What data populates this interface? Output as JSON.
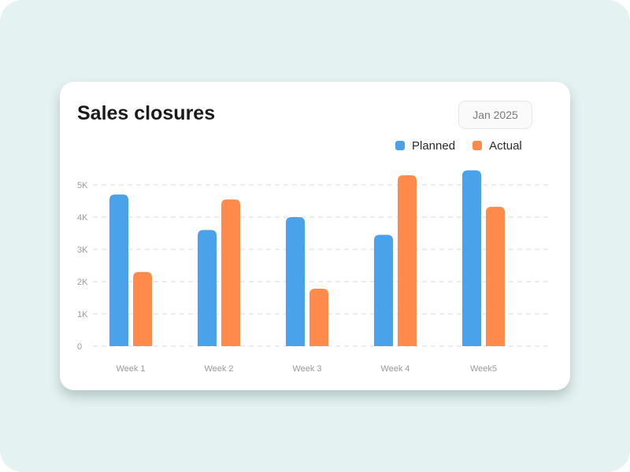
{
  "card": {
    "title": "Sales closures",
    "period": "Jan 2025"
  },
  "chart_data": {
    "type": "bar",
    "title": "Sales closures",
    "categories": [
      "Week 1",
      "Week 2",
      "Week 3",
      "Week 4",
      "Week5"
    ],
    "series": [
      {
        "name": "Planned",
        "color": "#4aa3ea",
        "values": [
          4700,
          3600,
          4000,
          3450,
          5450
        ]
      },
      {
        "name": "Actual",
        "color": "#ff8a4c",
        "values": [
          2300,
          4550,
          1780,
          5300,
          4320
        ]
      }
    ],
    "y_ticks": [
      "0",
      "1K",
      "2K",
      "3K",
      "4K",
      "5K"
    ],
    "ylim": [
      0,
      5000
    ],
    "grid": true,
    "legend_position": "top-right"
  }
}
